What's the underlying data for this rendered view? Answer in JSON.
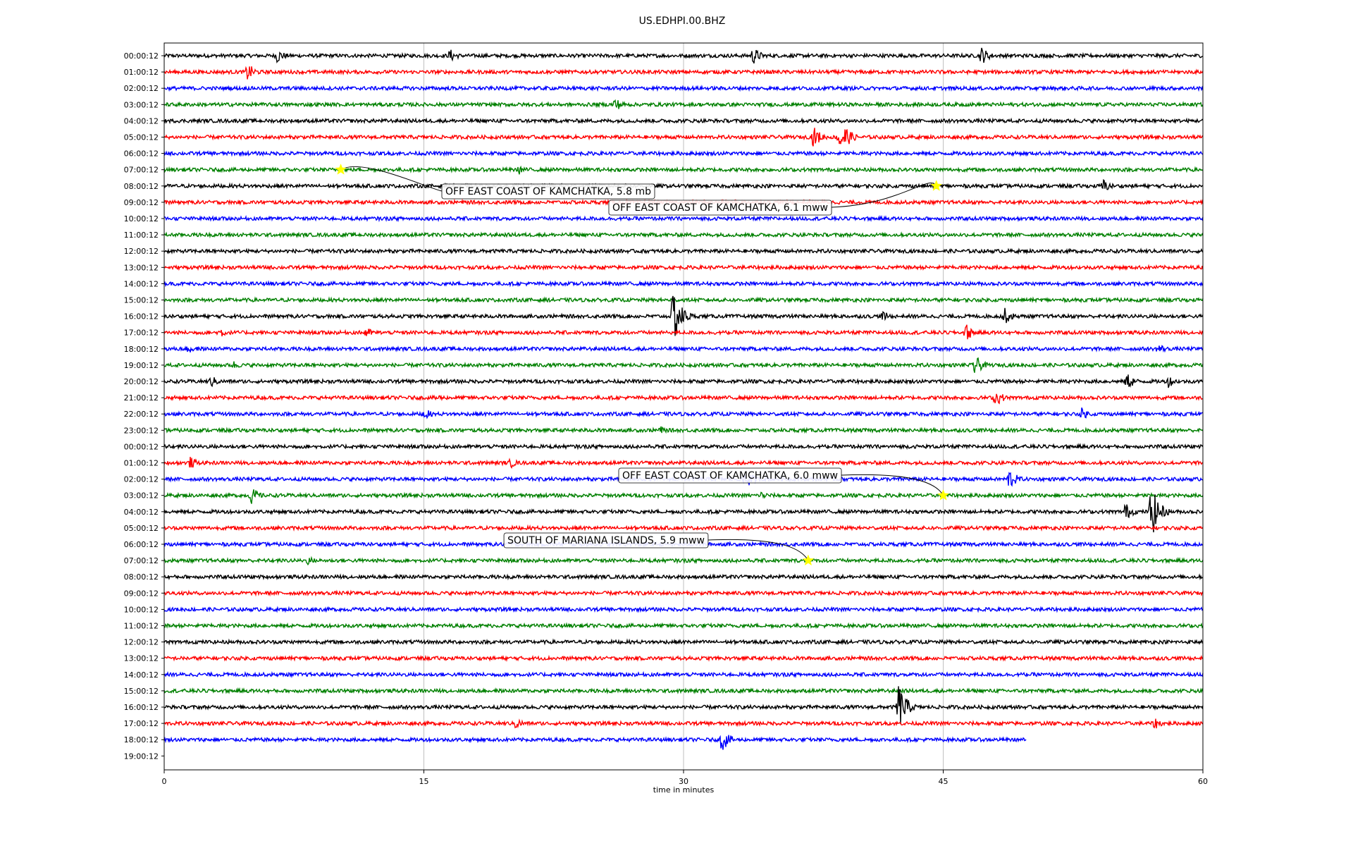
{
  "chart_data": {
    "type": "line",
    "title": "US.EDHPI.00.BHZ",
    "xlabel": "time in minutes",
    "ylabel": "",
    "xlim": [
      0,
      60
    ],
    "xticks": [
      0,
      15,
      30,
      45,
      60
    ],
    "grid": "vertical",
    "color_cycle": [
      "#000000",
      "#ff0000",
      "#0000ff",
      "#008000"
    ],
    "row_labels": [
      "00:00:12",
      "01:00:12",
      "02:00:12",
      "03:00:12",
      "04:00:12",
      "05:00:12",
      "06:00:12",
      "07:00:12",
      "08:00:12",
      "09:00:12",
      "10:00:12",
      "11:00:12",
      "12:00:12",
      "13:00:12",
      "14:00:12",
      "15:00:12",
      "16:00:12",
      "17:00:12",
      "18:00:12",
      "19:00:12",
      "20:00:12",
      "21:00:12",
      "22:00:12",
      "23:00:12",
      "00:00:12",
      "01:00:12",
      "02:00:12",
      "03:00:12",
      "04:00:12",
      "05:00:12",
      "06:00:12",
      "07:00:12",
      "08:00:12",
      "09:00:12",
      "10:00:12",
      "11:00:12",
      "12:00:12",
      "13:00:12",
      "14:00:12",
      "15:00:12",
      "16:00:12",
      "17:00:12",
      "18:00:12",
      "19:00:12"
    ],
    "last_trace_row": 42,
    "last_trace_end_minute": 49.8,
    "bursts": [
      {
        "row": 0,
        "minute": 6.5,
        "amp": 0.5
      },
      {
        "row": 0,
        "minute": 16.5,
        "amp": 0.45
      },
      {
        "row": 0,
        "minute": 34,
        "amp": 0.6
      },
      {
        "row": 0,
        "minute": 47.2,
        "amp": 0.6
      },
      {
        "row": 1,
        "minute": 4.8,
        "amp": 0.6
      },
      {
        "row": 3,
        "minute": 26,
        "amp": 0.5
      },
      {
        "row": 5,
        "minute": 37.5,
        "amp": 0.7
      },
      {
        "row": 5,
        "minute": 39,
        "amp": 1.5
      },
      {
        "row": 7,
        "minute": 20.5,
        "amp": 0.3
      },
      {
        "row": 8,
        "minute": 54.2,
        "amp": 0.5
      },
      {
        "row": 16,
        "minute": 29.4,
        "amp": 1.9
      },
      {
        "row": 16,
        "minute": 48.5,
        "amp": 0.6
      },
      {
        "row": 16,
        "minute": 41.5,
        "amp": 0.35
      },
      {
        "row": 17,
        "minute": 3.2,
        "amp": 0.4
      },
      {
        "row": 17,
        "minute": 11.6,
        "amp": 0.4
      },
      {
        "row": 17,
        "minute": 46.3,
        "amp": 0.6
      },
      {
        "row": 18,
        "minute": 1.4,
        "amp": 0.4
      },
      {
        "row": 18,
        "minute": 57.4,
        "amp": 0.4
      },
      {
        "row": 19,
        "minute": 46.8,
        "amp": 0.7
      },
      {
        "row": 19,
        "minute": 4.0,
        "amp": 0.3
      },
      {
        "row": 20,
        "minute": 2.7,
        "amp": 0.4
      },
      {
        "row": 20,
        "minute": 55.6,
        "amp": 0.6
      },
      {
        "row": 20,
        "minute": 58,
        "amp": 0.4
      },
      {
        "row": 21,
        "minute": 48,
        "amp": 0.6
      },
      {
        "row": 21,
        "minute": 15.7,
        "amp": 0.3
      },
      {
        "row": 22,
        "minute": 15,
        "amp": 0.4
      },
      {
        "row": 22,
        "minute": 53,
        "amp": 0.4
      },
      {
        "row": 23,
        "minute": 28.6,
        "amp": 0.3
      },
      {
        "row": 25,
        "minute": 1.5,
        "amp": 0.4
      },
      {
        "row": 25,
        "minute": 20,
        "amp": 0.35
      },
      {
        "row": 26,
        "minute": 33.5,
        "amp": 0.8
      },
      {
        "row": 26,
        "minute": 48.8,
        "amp": 0.7
      },
      {
        "row": 27,
        "minute": 5,
        "amp": 0.6
      },
      {
        "row": 27,
        "minute": 34.5,
        "amp": 0.3
      },
      {
        "row": 28,
        "minute": 57,
        "amp": 1.8
      },
      {
        "row": 28,
        "minute": 55.5,
        "amp": 0.6
      },
      {
        "row": 31,
        "minute": 8.3,
        "amp": 0.3
      },
      {
        "row": 40,
        "minute": 42.4,
        "amp": 1.6
      },
      {
        "row": 41,
        "minute": 20.3,
        "amp": 0.4
      },
      {
        "row": 41,
        "minute": 57.2,
        "amp": 0.4
      },
      {
        "row": 42,
        "minute": 32.2,
        "amp": 0.8
      }
    ],
    "events": [
      {
        "row": 7,
        "minute": 10.2,
        "label": "OFF EAST COAST OF KAMCHATKA, 5.8 mb"
      },
      {
        "row": 8,
        "minute": 44.6,
        "label": "OFF EAST COAST OF KAMCHATKA, 6.1 mww"
      },
      {
        "row": 27,
        "minute": 45.0,
        "label": "OFF EAST COAST OF KAMCHATKA, 6.0 mww"
      },
      {
        "row": 31,
        "minute": 37.2,
        "label": "SOUTH OF MARIANA ISLANDS, 5.9 mww"
      }
    ]
  }
}
